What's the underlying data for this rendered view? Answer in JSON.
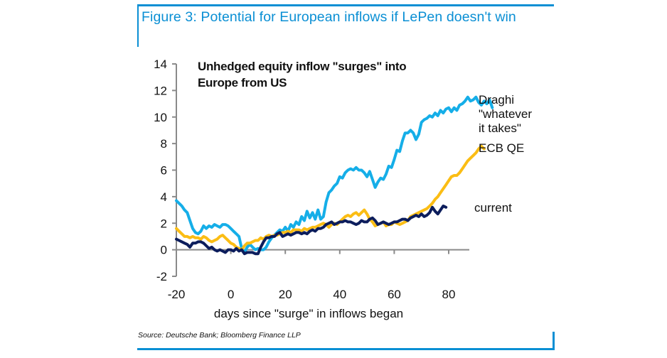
{
  "figure": {
    "title": "Figure 3: Potential for European inflows if LePen doesn't win",
    "source": "Source: Deutsche Bank; Bloomberg Finance LLP",
    "accent_color": "#0a8fd4"
  },
  "chart_data": {
    "type": "line",
    "title": "Unhedged  equity inflow \"surges\" into Europe from US",
    "title_lines": [
      "Unhedged  equity inflow \"surges\" into",
      "Europe from US"
    ],
    "xlabel": "days since \"surge\" in inflows began",
    "ylabel": "",
    "xlim": [
      -20,
      87
    ],
    "ylim": [
      -2,
      14
    ],
    "xticks": [
      -20,
      0,
      20,
      40,
      60,
      80
    ],
    "yticks": [
      -2,
      0,
      2,
      4,
      6,
      8,
      10,
      12,
      14
    ],
    "grid": false,
    "legend": "inline-right",
    "series": [
      {
        "name": "Draghi \"whatever it takes\"",
        "label_lines": [
          "Draghi",
          "\"whatever",
          "it takes\""
        ],
        "color": "#15aee8",
        "x_start": -20,
        "values": [
          3.7,
          3.5,
          3.3,
          3.0,
          2.8,
          2.2,
          1.6,
          1.3,
          1.2,
          1.4,
          1.8,
          1.6,
          1.8,
          1.7,
          1.9,
          1.8,
          1.7,
          1.9,
          1.9,
          1.8,
          1.6,
          1.4,
          1.2,
          1.0,
          0.1,
          -0.2,
          0.2,
          0.4,
          0.2,
          0.0,
          0.1,
          0.0,
          0.0,
          0.2,
          0.6,
          0.9,
          1.1,
          1.3,
          1.5,
          1.4,
          1.7,
          1.4,
          1.9,
          1.7,
          2.1,
          1.9,
          2.5,
          2.2,
          2.9,
          2.4,
          2.8,
          2.3,
          3.0,
          2.3,
          2.5,
          3.6,
          4.3,
          4.5,
          4.8,
          5.0,
          5.5,
          5.4,
          5.8,
          6.0,
          6.1,
          6.0,
          6.2,
          6.0,
          6.0,
          5.8,
          5.5,
          5.9,
          5.3,
          4.7,
          5.1,
          5.4,
          5.3,
          5.7,
          6.3,
          6.2,
          6.8,
          7.5,
          7.4,
          8.2,
          8.8,
          8.8,
          9.0,
          8.8,
          8.3,
          8.7,
          9.6,
          9.8,
          9.9,
          10.1,
          10.0,
          10.3,
          10.1,
          10.5,
          10.3,
          10.6,
          10.7,
          10.4,
          10.7,
          10.5,
          10.9,
          11.0,
          11.2,
          11.5,
          11.2,
          11.3,
          11.5,
          11.1,
          10.9,
          11.2,
          11.0,
          11.3,
          10.7
        ]
      },
      {
        "name": "ECB QE",
        "label_lines": [
          "ECB QE"
        ],
        "color": "#fbbd14",
        "x_start": -20,
        "values": [
          1.6,
          1.4,
          1.2,
          1.0,
          1.0,
          0.9,
          1.0,
          0.9,
          0.9,
          0.8,
          1.0,
          0.9,
          0.7,
          0.6,
          0.7,
          0.8,
          1.0,
          1.1,
          0.9,
          0.7,
          0.5,
          0.4,
          0.2,
          0.1,
          0.0,
          0.3,
          0.5,
          0.5,
          0.6,
          0.7,
          0.7,
          0.9,
          0.8,
          1.0,
          1.1,
          1.0,
          1.1,
          1.1,
          1.2,
          1.3,
          1.3,
          1.4,
          1.3,
          1.5,
          1.5,
          1.5,
          1.4,
          1.6,
          1.5,
          1.6,
          1.7,
          1.7,
          1.8,
          1.9,
          2.0,
          1.9,
          1.7,
          1.9,
          2.0,
          1.9,
          2.1,
          2.3,
          2.5,
          2.6,
          2.5,
          2.7,
          2.8,
          2.6,
          2.8,
          3.0,
          2.7,
          2.3,
          2.1,
          1.8,
          1.9,
          2.0,
          2.1,
          1.8,
          1.9,
          1.9,
          2.1,
          2.0,
          1.9,
          2.0,
          2.1,
          2.2,
          2.5,
          2.6,
          2.7,
          2.8,
          2.9,
          3.0,
          3.1,
          3.3,
          3.5,
          3.8,
          4.0,
          4.3,
          4.6,
          4.9,
          5.2,
          5.5,
          5.6,
          5.6,
          5.8,
          6.1,
          6.4,
          6.7,
          6.9,
          7.1,
          7.3,
          7.6,
          7.8,
          7.6
        ]
      },
      {
        "name": "current",
        "label_lines": [
          "current"
        ],
        "color": "#0c1d5c",
        "x_start": -20,
        "values": [
          0.8,
          0.7,
          0.6,
          0.5,
          0.4,
          0.2,
          0.5,
          0.5,
          0.6,
          0.6,
          0.5,
          0.3,
          0.1,
          0.2,
          0.0,
          -0.1,
          0.0,
          -0.1,
          -0.2,
          0.0,
          0.0,
          -0.1,
          0.1,
          -0.1,
          0.0,
          -0.3,
          -0.2,
          -0.2,
          -0.2,
          -0.3,
          -0.3,
          0.2,
          0.6,
          0.9,
          0.9,
          1.0,
          1.0,
          1.2,
          1.3,
          1.0,
          1.1,
          1.2,
          1.1,
          1.2,
          1.3,
          1.3,
          1.2,
          1.3,
          1.2,
          1.4,
          1.5,
          1.4,
          1.6,
          1.6,
          1.7,
          1.9,
          2.0,
          2.1,
          1.9,
          2.0,
          2.1,
          2.1,
          2.2,
          2.1,
          2.1,
          2.0,
          1.9,
          2.0,
          2.2,
          2.1,
          2.1,
          2.3,
          2.4,
          2.2,
          1.9,
          2.0,
          2.1,
          2.0,
          1.9,
          2.0,
          2.1,
          2.1,
          2.2,
          2.3,
          2.3,
          2.2,
          2.4,
          2.5,
          2.6,
          2.5,
          2.7,
          2.5,
          2.6,
          2.8,
          3.2,
          2.9,
          2.7,
          3.0,
          3.3,
          3.2
        ]
      }
    ]
  }
}
